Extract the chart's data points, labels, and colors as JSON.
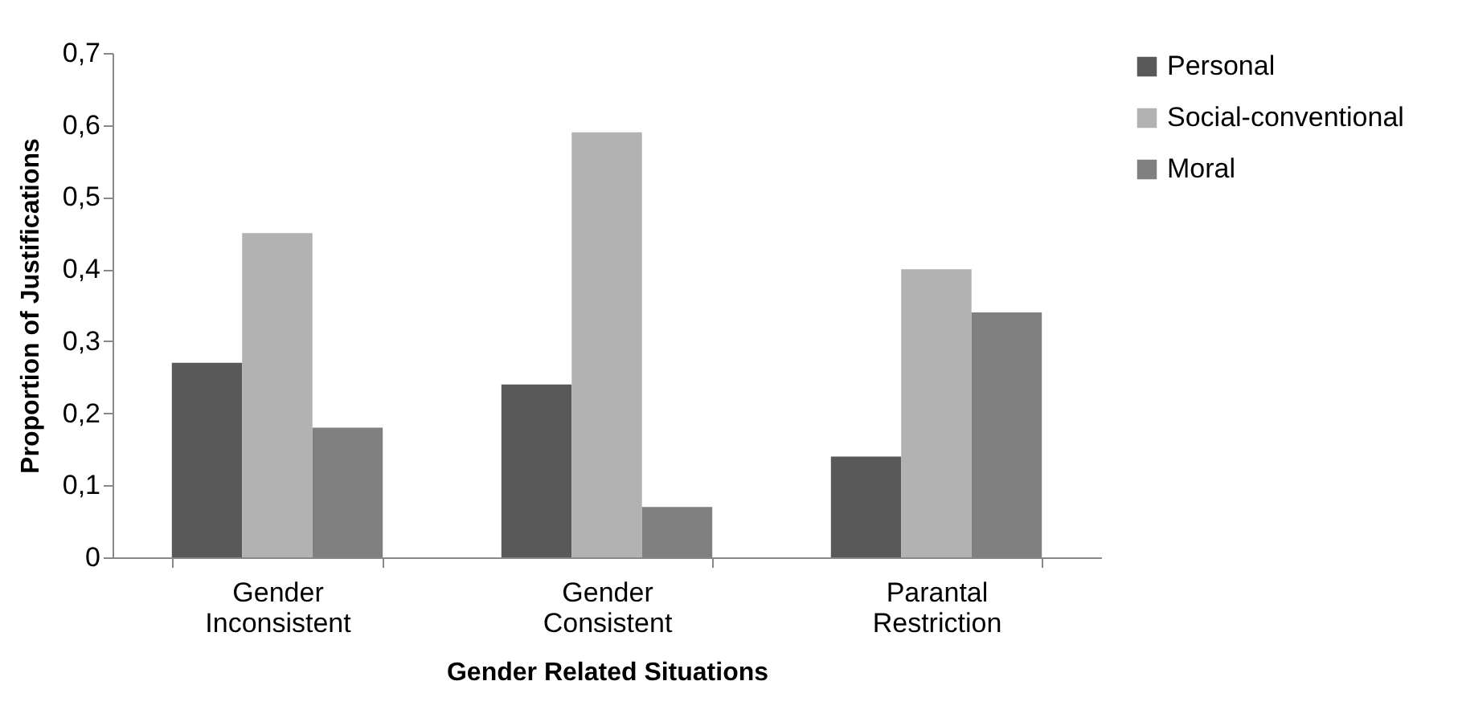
{
  "chart_data": {
    "type": "bar",
    "xlabel": "Gender Related Situations",
    "ylabel": "Proportion of Justifications",
    "categories": [
      "Gender Inconsistent",
      "Gender Consistent",
      "Parantal Restriction"
    ],
    "series": [
      {
        "name": "Personal",
        "color": "#595959",
        "values": [
          0.27,
          0.24,
          0.14
        ]
      },
      {
        "name": "Social-conventional",
        "color": "#b2b2b2",
        "values": [
          0.45,
          0.59,
          0.4
        ]
      },
      {
        "name": "Moral",
        "color": "#808080",
        "values": [
          0.18,
          0.07,
          0.34
        ]
      }
    ],
    "ylim": [
      0,
      0.7
    ],
    "yticks": [
      0,
      {
        "value": 0.1,
        "label": "0,1"
      },
      {
        "value": 0.2,
        "label": "0,2"
      },
      {
        "value": 0.3,
        "label": "0,3"
      },
      {
        "value": 0.4,
        "label": "0,4"
      },
      {
        "value": 0.5,
        "label": "0,5"
      },
      {
        "value": 0.6,
        "label": "0,6"
      },
      {
        "value": 0.7,
        "label": "0,7"
      }
    ],
    "legend": "right",
    "grid": false
  }
}
